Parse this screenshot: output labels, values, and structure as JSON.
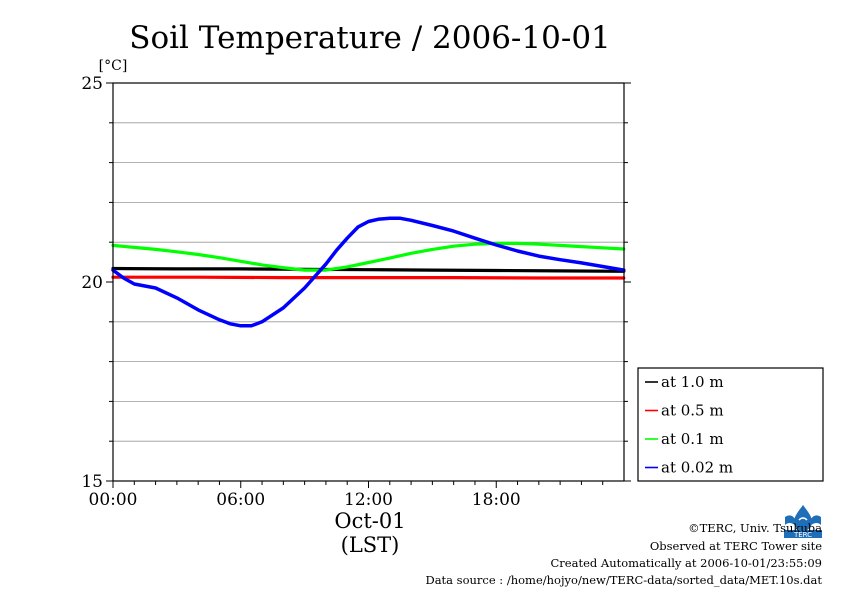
{
  "chart_data": {
    "type": "line",
    "title": "Soil Temperature / 2006-10-01",
    "ylabel": "[°C]",
    "xlabel": "(LST)",
    "date_label": "Oct-01",
    "ylim": [
      15,
      25
    ],
    "yticks": [
      15,
      20,
      25
    ],
    "ygrid": [
      16,
      17,
      18,
      19,
      21,
      22,
      23,
      24
    ],
    "xlim": [
      0,
      24
    ],
    "xticks": [
      {
        "value": 0,
        "label": "00:00"
      },
      {
        "value": 6,
        "label": "06:00"
      },
      {
        "value": 12,
        "label": "12:00"
      },
      {
        "value": 18,
        "label": "18:00"
      }
    ],
    "grid": true,
    "legend_position": "bottom-right outside",
    "series": [
      {
        "name": "at 1.0 m",
        "color": "#000000",
        "x": [
          0,
          3,
          6,
          9,
          12,
          15,
          18,
          21,
          23.99
        ],
        "y": [
          20.34,
          20.33,
          20.33,
          20.32,
          20.31,
          20.3,
          20.29,
          20.28,
          20.27
        ]
      },
      {
        "name": "at 0.5 m",
        "color": "#ff0000",
        "x": [
          0,
          4,
          8,
          12,
          16,
          20,
          23.99
        ],
        "y": [
          20.12,
          20.12,
          20.11,
          20.11,
          20.11,
          20.1,
          20.1
        ]
      },
      {
        "name": "at 0.1 m",
        "color": "#00ff00",
        "x": [
          0,
          1,
          2,
          3,
          4,
          5,
          6,
          7,
          8,
          9,
          10,
          11,
          12,
          13,
          14,
          15,
          16,
          17,
          18,
          19,
          20,
          21,
          22,
          23,
          23.99
        ],
        "y": [
          20.92,
          20.87,
          20.82,
          20.76,
          20.69,
          20.61,
          20.52,
          20.43,
          20.36,
          20.3,
          20.3,
          20.38,
          20.49,
          20.6,
          20.72,
          20.82,
          20.9,
          20.95,
          20.97,
          20.97,
          20.95,
          20.92,
          20.89,
          20.86,
          20.83
        ]
      },
      {
        "name": "at 0.02 m",
        "color": "#0000ff",
        "x": [
          0,
          0.5,
          1,
          1.5,
          2,
          3,
          4,
          5,
          5.5,
          6,
          6.5,
          7,
          8,
          9,
          10,
          10.5,
          11,
          11.5,
          12,
          12.5,
          13,
          13.5,
          14,
          15,
          16,
          17,
          18,
          19,
          20,
          21,
          22,
          23,
          23.99
        ],
        "y": [
          20.3,
          20.1,
          19.95,
          19.9,
          19.85,
          19.6,
          19.3,
          19.05,
          18.95,
          18.9,
          18.9,
          19.0,
          19.35,
          19.85,
          20.45,
          20.8,
          21.1,
          21.38,
          21.52,
          21.58,
          21.6,
          21.6,
          21.55,
          21.42,
          21.28,
          21.1,
          20.93,
          20.78,
          20.65,
          20.56,
          20.48,
          20.39,
          20.3
        ]
      }
    ]
  },
  "footer": {
    "copyright": "©TERC, Univ. Tsukuba",
    "observed": "Observed at TERC Tower site",
    "created": "Created Automatically at 2006-10-01/23:55:09",
    "source": "Data source : /home/hojyo/new/TERC-data/sorted_data/MET.10s.dat"
  },
  "logo": {
    "text": "TERC",
    "color": "#1e6fb8"
  }
}
